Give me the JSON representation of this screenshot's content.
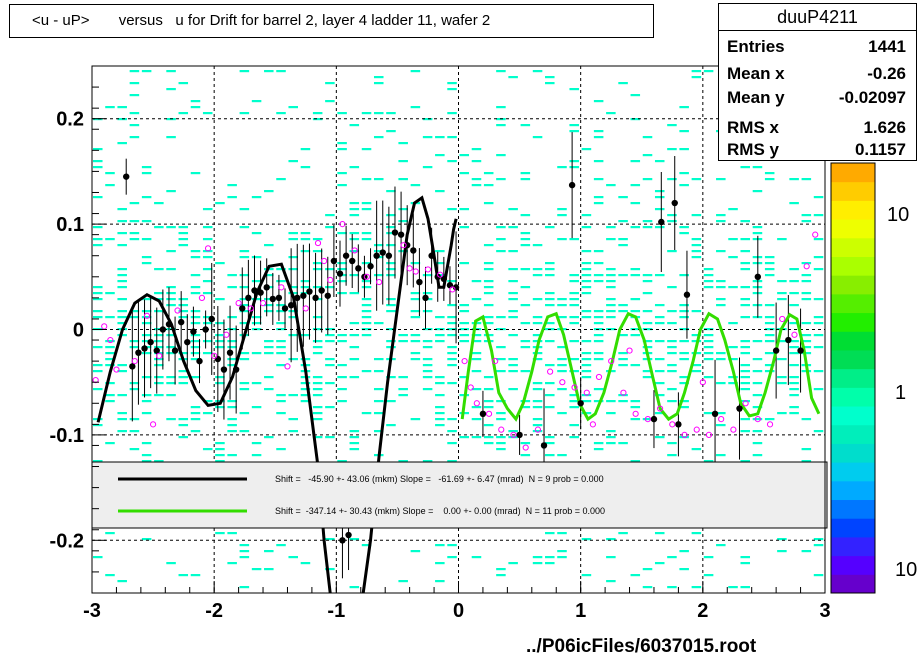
{
  "title": "<u - uP>       versus   u for Drift for barrel 2, layer 4 ladder 11, wafer 2",
  "footer": "../P06icFiles/6037015.root",
  "stats": {
    "name": "duuP4211",
    "rows": [
      {
        "label": "Entries",
        "value": "1441"
      },
      {
        "label": "Mean x",
        "value": "-0.26"
      },
      {
        "label": "Mean y",
        "value": "-0.02097"
      },
      {
        "label": "RMS x",
        "value": "1.626"
      },
      {
        "label": "RMS y",
        "value": "0.1157"
      }
    ]
  },
  "colors": {
    "black_fit": "#000000",
    "green_fit": "#33dd00",
    "cells": "#00ffcc",
    "open_markers": "#ff00ff",
    "grid": "#000000",
    "legend_bg": "#eeeeee"
  },
  "chart_data": {
    "type": "scatter",
    "xlim": [
      -3,
      3
    ],
    "ylim": [
      -0.25,
      0.25
    ],
    "x_ticks": [
      -3,
      -2,
      -1,
      0,
      1,
      2,
      3
    ],
    "y_ticks": [
      -0.2,
      -0.1,
      0,
      0.1,
      0.2
    ],
    "grid": true,
    "colorbar": {
      "labels": [
        "10",
        "1",
        "10"
      ],
      "scale": "log"
    },
    "legend": [
      {
        "text": "Shift =   -45.90 +- 43.06 (mkm) Slope =   -61.69 +- 6.47 (mrad)  N = 9 prob = 0.000",
        "color": "#000000"
      },
      {
        "text": "Shift =  -347.14 +- 30.43 (mkm) Slope =    0.00 +- 0.00 (mrad)  N = 11 prob = 0.000",
        "color": "#33dd00"
      }
    ],
    "fits": [
      {
        "color": "#000000",
        "x": [
          -2.95,
          -2.85,
          -2.75,
          -2.65,
          -2.55,
          -2.45,
          -2.35,
          -2.25,
          -2.15,
          -2.05,
          -1.95,
          -1.85,
          -1.75,
          -1.65,
          -1.55,
          -1.45,
          -1.35,
          -1.25,
          -1.15,
          -1.1,
          -1.05
        ],
        "y": [
          -0.088,
          -0.04,
          0.0,
          0.025,
          0.033,
          0.027,
          0.005,
          -0.03,
          -0.058,
          -0.072,
          -0.07,
          -0.045,
          -0.005,
          0.035,
          0.06,
          0.062,
          0.03,
          -0.04,
          -0.13,
          -0.2,
          -0.26
        ]
      },
      {
        "color": "#000000",
        "x": [
          -0.78,
          -0.72,
          -0.65,
          -0.58,
          -0.5,
          -0.42,
          -0.36,
          -0.3,
          -0.25,
          -0.2,
          -0.16,
          -0.12,
          -0.09,
          -0.06,
          -0.04,
          -0.02
        ],
        "y": [
          -0.26,
          -0.2,
          -0.12,
          -0.05,
          0.02,
          0.09,
          0.12,
          0.125,
          0.105,
          0.07,
          0.04,
          0.04,
          0.06,
          0.08,
          0.095,
          0.105
        ]
      },
      {
        "color": "#33dd00",
        "x": [
          0.03,
          0.08,
          0.14,
          0.2,
          0.27,
          0.33,
          0.4,
          0.47,
          0.53,
          0.6,
          0.66,
          0.73,
          0.8,
          0.86,
          0.93,
          0.99,
          1.06,
          1.12,
          1.19,
          1.26,
          1.32,
          1.39,
          1.45,
          1.52,
          1.59,
          1.65,
          1.72,
          1.79,
          1.85,
          1.92,
          1.98,
          2.05,
          2.12,
          2.18,
          2.25,
          2.31,
          2.38,
          2.45,
          2.51,
          2.58,
          2.64,
          2.71,
          2.77,
          2.83,
          2.89,
          2.95
        ],
        "y": [
          -0.085,
          -0.04,
          0.008,
          0.012,
          -0.02,
          -0.06,
          -0.075,
          -0.085,
          -0.07,
          -0.04,
          -0.01,
          0.012,
          0.015,
          -0.005,
          -0.04,
          -0.07,
          -0.085,
          -0.08,
          -0.06,
          -0.03,
          0.0,
          0.015,
          0.012,
          -0.01,
          -0.045,
          -0.075,
          -0.085,
          -0.08,
          -0.06,
          -0.03,
          0.0,
          0.015,
          0.01,
          -0.01,
          -0.04,
          -0.07,
          -0.082,
          -0.08,
          -0.06,
          -0.03,
          0.0,
          0.014,
          0.01,
          -0.02,
          -0.065,
          -0.08
        ]
      }
    ],
    "filled_points": [
      [
        -2.72,
        0.145
      ],
      [
        -2.67,
        -0.035
      ],
      [
        -2.62,
        -0.022
      ],
      [
        -2.57,
        -0.018
      ],
      [
        -2.52,
        -0.012
      ],
      [
        -2.47,
        -0.02
      ],
      [
        -2.42,
        0.0
      ],
      [
        -2.37,
        0.005
      ],
      [
        -2.32,
        -0.02
      ],
      [
        -2.27,
        0.007
      ],
      [
        -2.22,
        -0.012
      ],
      [
        -2.17,
        -0.002
      ],
      [
        -2.12,
        -0.03
      ],
      [
        -2.07,
        0.0
      ],
      [
        -2.02,
        0.01
      ],
      [
        -1.97,
        -0.028
      ],
      [
        -1.92,
        -0.038
      ],
      [
        -1.87,
        -0.022
      ],
      [
        -1.82,
        -0.038
      ],
      [
        -1.77,
        0.02
      ],
      [
        -1.72,
        0.03
      ],
      [
        -1.67,
        0.037
      ],
      [
        -1.62,
        0.035
      ],
      [
        -1.57,
        0.04
      ],
      [
        -1.52,
        0.029
      ],
      [
        -1.47,
        0.03
      ],
      [
        -1.42,
        0.02
      ],
      [
        -1.37,
        0.023
      ],
      [
        -1.32,
        0.03
      ],
      [
        -1.27,
        0.032
      ],
      [
        -1.22,
        0.036
      ],
      [
        -1.17,
        0.03
      ],
      [
        -1.12,
        0.037
      ],
      [
        -1.07,
        0.032
      ],
      [
        -1.02,
        0.065
      ],
      [
        -0.97,
        0.053
      ],
      [
        -0.92,
        0.07
      ],
      [
        -0.87,
        0.065
      ],
      [
        -0.82,
        0.058
      ],
      [
        -0.77,
        0.05
      ],
      [
        -0.72,
        0.06
      ],
      [
        -0.67,
        0.07
      ],
      [
        -0.62,
        0.073
      ],
      [
        -0.57,
        0.07
      ],
      [
        -0.52,
        0.092
      ],
      [
        -0.47,
        0.09
      ],
      [
        -0.42,
        0.08
      ],
      [
        -0.37,
        0.075
      ],
      [
        -0.32,
        0.045
      ],
      [
        -0.27,
        0.03
      ],
      [
        -0.22,
        0.07
      ],
      [
        -0.17,
        0.05
      ],
      [
        -0.12,
        0.048
      ],
      [
        -0.07,
        0.042
      ],
      [
        -0.02,
        0.04
      ],
      [
        0.93,
        0.137
      ],
      [
        1.66,
        0.102
      ],
      [
        1.77,
        0.12
      ],
      [
        1.87,
        0.033
      ],
      [
        2.45,
        0.05
      ],
      [
        -0.95,
        -0.2
      ],
      [
        -0.9,
        -0.195
      ],
      [
        1.8,
        -0.09
      ],
      [
        1.6,
        -0.085
      ],
      [
        1.0,
        -0.07
      ],
      [
        0.2,
        -0.08
      ],
      [
        0.5,
        -0.1
      ],
      [
        0.7,
        -0.11
      ],
      [
        2.1,
        -0.08
      ],
      [
        2.3,
        -0.075
      ],
      [
        2.6,
        -0.02
      ],
      [
        2.7,
        -0.01
      ],
      [
        2.8,
        -0.02
      ]
    ],
    "open_points": [
      [
        -2.97,
        -0.048
      ],
      [
        -2.9,
        0.003
      ],
      [
        -2.85,
        -0.01
      ],
      [
        -2.8,
        -0.038
      ],
      [
        -2.65,
        -0.03
      ],
      [
        -2.55,
        0.013
      ],
      [
        -2.5,
        -0.09
      ],
      [
        -2.45,
        -0.025
      ],
      [
        -2.3,
        0.018
      ],
      [
        -2.1,
        0.03
      ],
      [
        -2.05,
        0.077
      ],
      [
        -2.0,
        -0.025
      ],
      [
        -1.9,
        -0.005
      ],
      [
        -1.8,
        0.025
      ],
      [
        -1.7,
        0.02
      ],
      [
        -1.6,
        0.025
      ],
      [
        -1.45,
        0.04
      ],
      [
        -1.4,
        -0.035
      ],
      [
        -1.25,
        0.02
      ],
      [
        -1.15,
        0.082
      ],
      [
        -1.1,
        0.065
      ],
      [
        -1.05,
        0.047
      ],
      [
        -0.95,
        0.1
      ],
      [
        -0.85,
        0.075
      ],
      [
        -0.75,
        0.05
      ],
      [
        -0.65,
        0.045
      ],
      [
        -0.45,
        0.08
      ],
      [
        -0.4,
        0.058
      ],
      [
        -0.35,
        0.055
      ],
      [
        -0.25,
        0.057
      ],
      [
        -0.15,
        0.052
      ],
      [
        -0.05,
        0.038
      ],
      [
        0.05,
        -0.03
      ],
      [
        0.1,
        -0.055
      ],
      [
        0.15,
        -0.07
      ],
      [
        0.25,
        -0.08
      ],
      [
        0.35,
        -0.095
      ],
      [
        0.45,
        -0.1
      ],
      [
        0.55,
        -0.112
      ],
      [
        0.65,
        -0.095
      ],
      [
        0.75,
        -0.04
      ],
      [
        0.85,
        -0.05
      ],
      [
        0.95,
        -0.055
      ],
      [
        1.05,
        -0.06
      ],
      [
        1.15,
        -0.045
      ],
      [
        1.25,
        -0.03
      ],
      [
        1.35,
        -0.06
      ],
      [
        1.45,
        -0.08
      ],
      [
        1.55,
        -0.085
      ],
      [
        1.65,
        -0.075
      ],
      [
        1.75,
        -0.09
      ],
      [
        1.85,
        -0.1
      ],
      [
        1.95,
        -0.095
      ],
      [
        2.05,
        -0.1
      ],
      [
        2.15,
        -0.085
      ],
      [
        2.25,
        -0.095
      ],
      [
        2.35,
        -0.07
      ],
      [
        2.45,
        -0.085
      ],
      [
        2.55,
        -0.09
      ],
      [
        2.65,
        0.01
      ],
      [
        2.75,
        -0.005
      ],
      [
        2.85,
        0.06
      ],
      [
        2.92,
        0.09
      ],
      [
        0.3,
        -0.03
      ],
      [
        1.1,
        -0.09
      ],
      [
        1.4,
        -0.02
      ],
      [
        2.0,
        -0.05
      ]
    ]
  }
}
